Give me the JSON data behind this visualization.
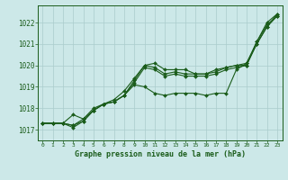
{
  "title": "Graphe pression niveau de la mer (hPa)",
  "background_color": "#cce8e8",
  "grid_color": "#aacccc",
  "line_color": "#1a5c1a",
  "marker_color": "#1a5c1a",
  "xlim": [
    -0.5,
    23.5
  ],
  "ylim": [
    1016.5,
    1022.8
  ],
  "yticks": [
    1017,
    1018,
    1019,
    1020,
    1021,
    1022
  ],
  "xticks": [
    0,
    1,
    2,
    3,
    4,
    5,
    6,
    7,
    8,
    9,
    10,
    11,
    12,
    13,
    14,
    15,
    16,
    17,
    18,
    19,
    20,
    21,
    22,
    23
  ],
  "series": [
    [
      1017.3,
      1017.3,
      1017.3,
      1017.7,
      1017.5,
      1018.0,
      1018.2,
      1018.4,
      1018.8,
      1019.4,
      1020.0,
      1020.1,
      1019.8,
      1019.8,
      1019.8,
      1019.6,
      1019.6,
      1019.8,
      1019.9,
      1020.0,
      1020.1,
      1021.1,
      1022.0,
      1022.4
    ],
    [
      1017.3,
      1017.3,
      1017.3,
      1017.2,
      1017.5,
      1017.9,
      1018.2,
      1018.3,
      1018.6,
      1019.3,
      1020.0,
      1019.9,
      1019.6,
      1019.7,
      1019.6,
      1019.6,
      1019.6,
      1019.7,
      1019.9,
      1020.0,
      1020.0,
      1021.1,
      1021.9,
      1022.3
    ],
    [
      1017.3,
      1017.3,
      1017.3,
      1017.2,
      1017.4,
      1017.9,
      1018.2,
      1018.3,
      1018.6,
      1019.2,
      1019.9,
      1019.8,
      1019.5,
      1019.6,
      1019.5,
      1019.5,
      1019.5,
      1019.6,
      1019.8,
      1019.9,
      1020.0,
      1021.0,
      1021.8,
      1022.3
    ],
    [
      1017.3,
      1017.3,
      1017.3,
      1017.1,
      1017.4,
      1017.9,
      1018.2,
      1018.3,
      1018.6,
      1019.1,
      1019.0,
      1018.7,
      1018.6,
      1018.7,
      1018.7,
      1018.7,
      1018.6,
      1018.7,
      1018.7,
      1019.8,
      1020.1,
      1021.0,
      1021.8,
      1022.4
    ]
  ],
  "figsize": [
    3.2,
    2.0
  ],
  "dpi": 100
}
